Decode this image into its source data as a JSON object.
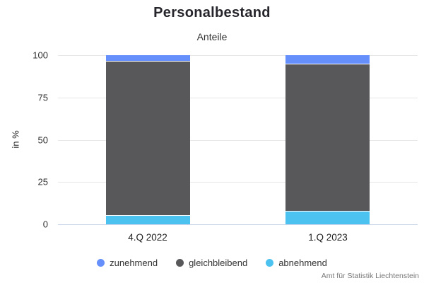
{
  "chart_data": {
    "type": "bar",
    "variant": "stacked-column",
    "title": "Personalbestand",
    "subtitle": "Anteile",
    "categories": [
      "4.Q 2022",
      "1.Q 2023"
    ],
    "series": [
      {
        "name": "zunehmend",
        "color": "#6590FB",
        "values": [
          3.5,
          5
        ]
      },
      {
        "name": "gleichbleibend",
        "color": "#58585B",
        "values": [
          91,
          87
        ]
      },
      {
        "name": "abnehmend",
        "color": "#4BC2F0",
        "values": [
          5.5,
          8
        ]
      }
    ],
    "stack_order_bottom_to_top": [
      "abnehmend",
      "gleichbleibend",
      "zunehmend"
    ],
    "ylabel": "in %",
    "yticks": [
      0,
      25,
      50,
      75,
      100
    ],
    "ylim": [
      0,
      100
    ],
    "grid": true,
    "legend_position": "bottom",
    "source": "Amt für Statistik Liechtenstein"
  },
  "colors": {
    "background": "#ffffff",
    "gridline": "#e6e6e6",
    "axis_line": "#ccd6eb",
    "title_text": "#25252b",
    "axis_text": "#333333",
    "credits_text": "#777777"
  }
}
